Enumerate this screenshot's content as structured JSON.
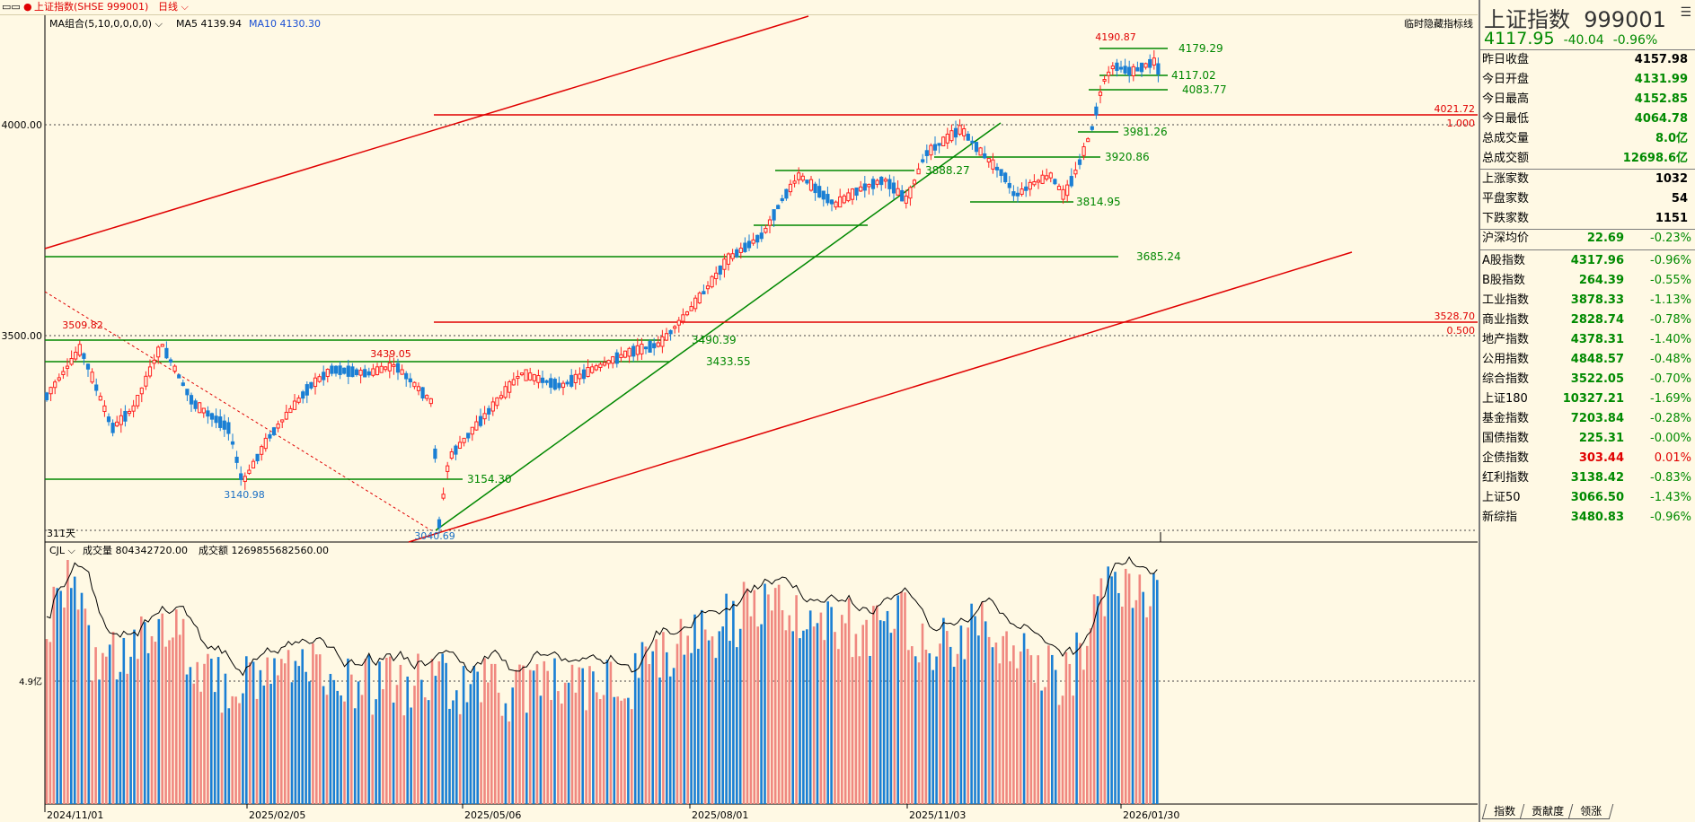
{
  "header": {
    "window_icons": "▭▭",
    "bullet": "●",
    "index_name": "上证指数(SHSE 999001)",
    "period": "日线",
    "ma_label": "MA组合(5,10,0,0,0,0)",
    "ma5": "MA5 4139.94",
    "ma10": "MA10 4130.30",
    "hide_label": "临时隐藏指标线"
  },
  "chart_data": {
    "type": "candlestick",
    "y_ticks": [
      "4000.00",
      "3500.00"
    ],
    "x_labels": [
      "2024/11/01",
      "2025/02/05",
      "2025/05/06",
      "2025/08/01",
      "2025/11/03",
      "2026/01/30"
    ],
    "days_label": "311天",
    "annotations": {
      "high": "4190.87",
      "peak_left": "3509.82",
      "peak_mid": "3439.05",
      "low_mid": "3140.98",
      "low_min": "3040.69",
      "levels": [
        "4179.29",
        "4117.02",
        "4083.77",
        "3981.26",
        "3920.86",
        "3888.27",
        "3814.95",
        "3685.24",
        "3490.39",
        "3433.55",
        "3154.30"
      ],
      "fib_top_value": "4021.72",
      "fib_top_ratio": "1.000",
      "fib_mid_value": "3528.70",
      "fib_mid_ratio": "0.500"
    },
    "volume": {
      "label": "CJL",
      "vol_text": "成交量 804342720.00",
      "amount_text": "成交额 1269855682560.00",
      "axis_label": "4.9亿"
    }
  },
  "panel": {
    "title": "上证指数",
    "code": "999001",
    "price": "4117.95",
    "change": "-40.04",
    "change_pct": "-0.96%",
    "menu_icon": "☰",
    "quotes": [
      {
        "label": "昨日收盘",
        "value": "4157.98",
        "color": "k"
      },
      {
        "label": "今日开盘",
        "value": "4131.99",
        "color": "g"
      },
      {
        "label": "今日最高",
        "value": "4152.85",
        "color": "g"
      },
      {
        "label": "今日最低",
        "value": "4064.78",
        "color": "g"
      },
      {
        "label": "总成交量",
        "value": "8.0亿",
        "color": "g"
      },
      {
        "label": "总成交额",
        "value": "12698.6亿",
        "color": "g"
      }
    ],
    "breadth": [
      {
        "label": "上涨家数",
        "value": "1032"
      },
      {
        "label": "平盘家数",
        "value": "54"
      },
      {
        "label": "下跌家数",
        "value": "1151"
      }
    ],
    "avg": {
      "label": "沪深均价",
      "value": "22.69",
      "pct": "-0.23%"
    },
    "indices": [
      {
        "label": "A股指数",
        "value": "4317.96",
        "pct": "-0.96%",
        "color": "g"
      },
      {
        "label": "B股指数",
        "value": "264.39",
        "pct": "-0.55%",
        "color": "g"
      },
      {
        "label": "工业指数",
        "value": "3878.33",
        "pct": "-1.13%",
        "color": "g"
      },
      {
        "label": "商业指数",
        "value": "2828.74",
        "pct": "-0.78%",
        "color": "g"
      },
      {
        "label": "地产指数",
        "value": "4378.31",
        "pct": "-1.40%",
        "color": "g"
      },
      {
        "label": "公用指数",
        "value": "4848.57",
        "pct": "-0.48%",
        "color": "g"
      },
      {
        "label": "综合指数",
        "value": "3522.05",
        "pct": "-0.70%",
        "color": "g"
      },
      {
        "label": "上证180",
        "value": "10327.21",
        "pct": "-1.69%",
        "color": "g"
      },
      {
        "label": "基金指数",
        "value": "7203.84",
        "pct": "-0.28%",
        "color": "g"
      },
      {
        "label": "国债指数",
        "value": "225.31",
        "pct": "-0.00%",
        "color": "g"
      },
      {
        "label": "企债指数",
        "value": "303.44",
        "pct": "0.01%",
        "color": "r"
      },
      {
        "label": "红利指数",
        "value": "3138.42",
        "pct": "-0.83%",
        "color": "g"
      },
      {
        "label": "上证50",
        "value": "3066.50",
        "pct": "-1.43%",
        "color": "g"
      },
      {
        "label": "新综指",
        "value": "3480.83",
        "pct": "-0.96%",
        "color": "g"
      }
    ],
    "tabs": [
      "指数",
      "贡献度",
      "领涨"
    ]
  }
}
